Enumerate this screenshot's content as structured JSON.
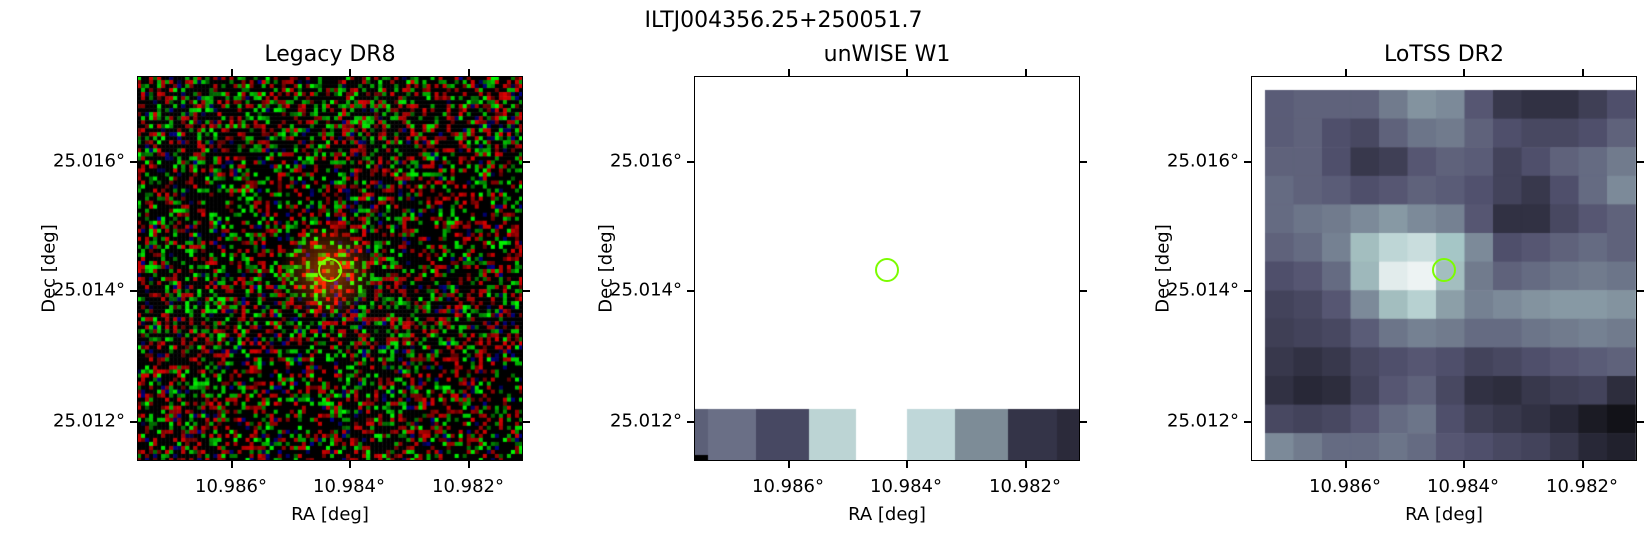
{
  "figure": {
    "title": "ILTJ004356.25+250051.7"
  },
  "panels": [
    {
      "title": "Legacy DR8",
      "xlabel": "RA [deg]",
      "ylabel": "Dec [deg]",
      "xticks": [
        "10.986°",
        "10.984°",
        "10.982°"
      ],
      "yticks": [
        "25.016°",
        "25.014°",
        "25.012°"
      ],
      "colormap": "RGB composite (noisy red/green pixels on black)"
    },
    {
      "title": "unWISE W1",
      "xlabel": "RA [deg]",
      "ylabel": "Dec [deg]",
      "xticks": [
        "10.986°",
        "10.984°",
        "10.982°"
      ],
      "yticks": [
        "25.016°",
        "25.014°",
        "25.012°"
      ],
      "colormap": "bone"
    },
    {
      "title": "LoTSS DR2",
      "xlabel": "RA [deg]",
      "ylabel": "Dec [deg]",
      "xticks": [
        "10.986°",
        "10.984°",
        "10.982°"
      ],
      "yticks": [
        "25.016°",
        "25.014°",
        "25.012°"
      ],
      "colormap": "bone"
    }
  ],
  "marker_color": "#7cfc00"
}
